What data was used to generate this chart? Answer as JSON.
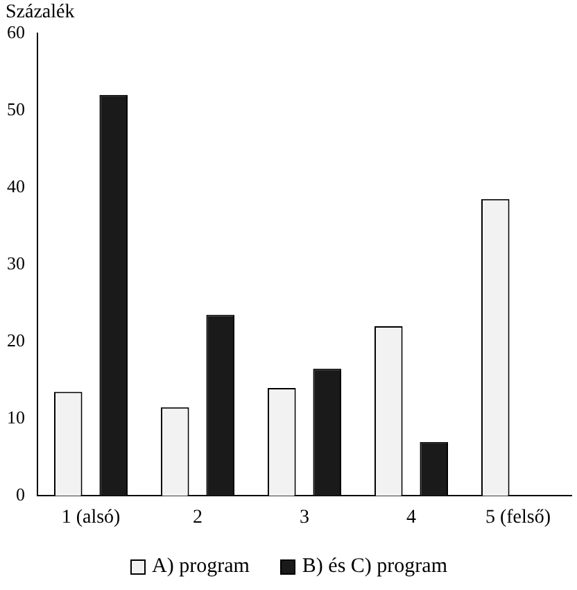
{
  "chart_data": {
    "type": "bar",
    "ylabel": "Százalék",
    "categories": [
      "1 (alsó)",
      "2",
      "3",
      "4",
      "5 (felső)"
    ],
    "series": [
      {
        "name": "A) program",
        "color": "#f2f2f2",
        "values": [
          13.5,
          11.5,
          14,
          22,
          38.5
        ]
      },
      {
        "name": "B) és C) program",
        "color": "#1a1a1a",
        "values": [
          52,
          23.5,
          16.5,
          7,
          0
        ]
      }
    ],
    "ylim": [
      0,
      60
    ],
    "yticks": [
      0,
      10,
      20,
      30,
      40,
      50,
      60
    ],
    "grid": false,
    "legend": "bottom"
  }
}
